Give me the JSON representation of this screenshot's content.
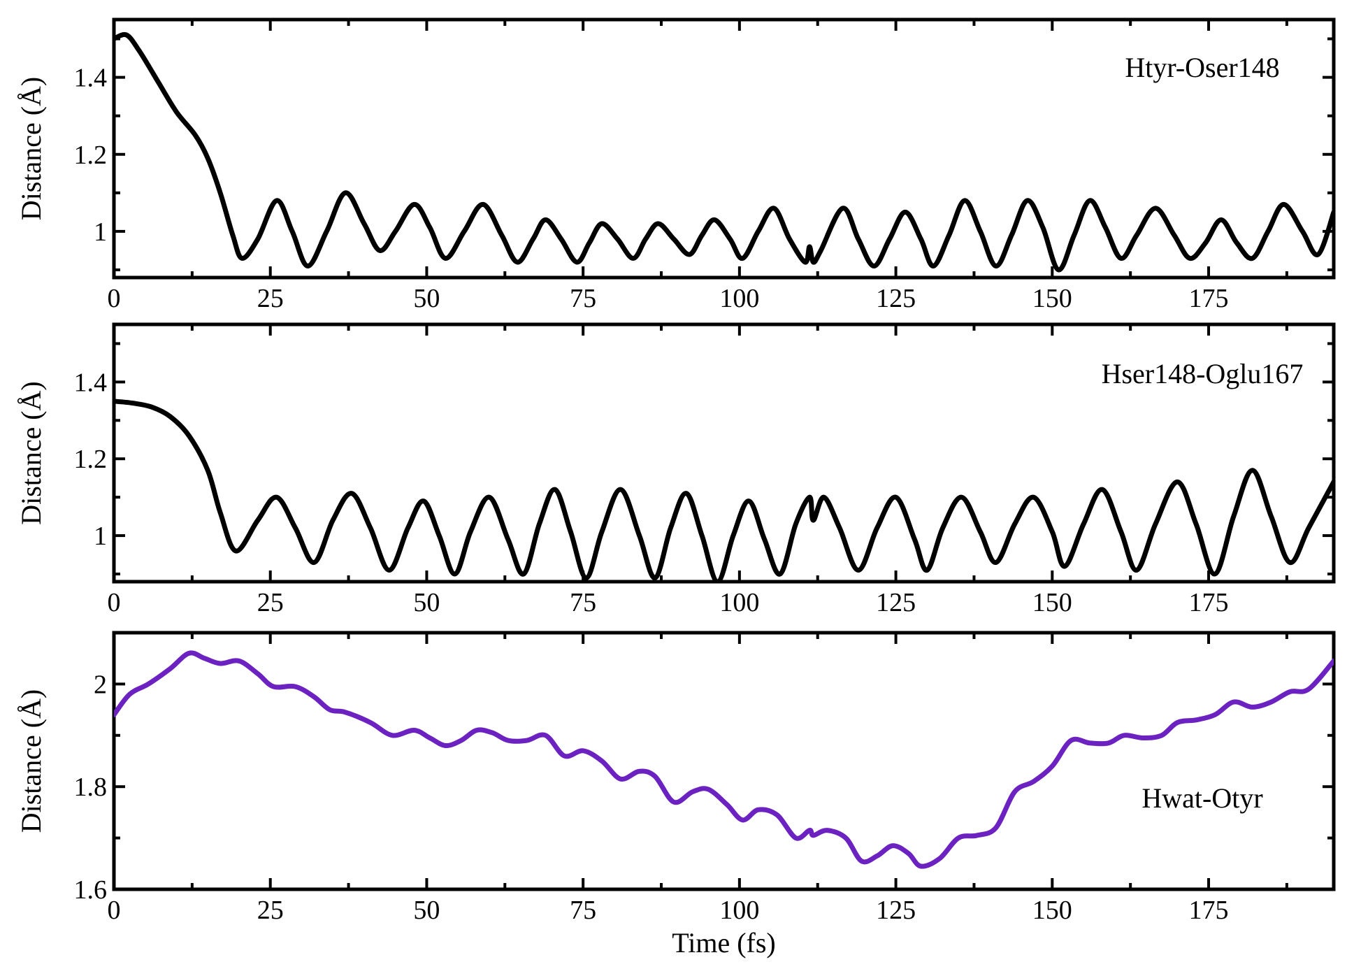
{
  "chart_data": [
    {
      "type": "line",
      "xlabel": "",
      "ylabel": "Distance (Å)",
      "xlim": [
        0,
        195
      ],
      "ylim": [
        0.88,
        1.55
      ],
      "xticks": [
        0,
        25,
        50,
        75,
        100,
        125,
        150,
        175
      ],
      "yticks": [
        1,
        1.2,
        1.4
      ],
      "ytick_labels": [
        "1",
        "1.2",
        "1.4"
      ],
      "annotation": "Htyr-Oser148",
      "color": "#000000",
      "series": [
        {
          "name": "Htyr-Oser148",
          "x": [
            0,
            2,
            4,
            7,
            10,
            13,
            15,
            17,
            19,
            20.5,
            23,
            26,
            28.5,
            31,
            34,
            37,
            40,
            42.5,
            45,
            48,
            50.5,
            53,
            56,
            59,
            62,
            64.5,
            67,
            69,
            71.5,
            74,
            76,
            78,
            80.5,
            83,
            85,
            87,
            89.5,
            92,
            94,
            96,
            98.5,
            100.5,
            103,
            105.5,
            108,
            110.5,
            111.2,
            111.8,
            113,
            116.5,
            119,
            121.5,
            124,
            126.5,
            129,
            131,
            133.5,
            136,
            138.5,
            141,
            143.5,
            146,
            148.5,
            151,
            153.5,
            156,
            158.5,
            161,
            163.5,
            166.5,
            169.5,
            172,
            174.5,
            177,
            179.5,
            182,
            184.5,
            187,
            190,
            192.5,
            195
          ],
          "y": [
            1.5,
            1.51,
            1.47,
            1.39,
            1.31,
            1.25,
            1.19,
            1.1,
            0.99,
            0.93,
            0.98,
            1.08,
            1.0,
            0.91,
            1.0,
            1.1,
            1.02,
            0.95,
            1.0,
            1.07,
            1.01,
            0.93,
            1.0,
            1.07,
            0.99,
            0.92,
            0.98,
            1.03,
            0.98,
            0.92,
            0.97,
            1.02,
            0.98,
            0.93,
            0.98,
            1.02,
            0.98,
            0.94,
            0.99,
            1.03,
            0.98,
            0.93,
            1.0,
            1.06,
            0.98,
            0.92,
            0.96,
            0.92,
            0.95,
            1.06,
            0.98,
            0.91,
            0.98,
            1.05,
            0.98,
            0.91,
            0.99,
            1.08,
            1.0,
            0.91,
            0.99,
            1.08,
            1.01,
            0.9,
            0.99,
            1.08,
            1.01,
            0.93,
            0.99,
            1.06,
            0.99,
            0.93,
            0.97,
            1.03,
            0.97,
            0.93,
            1.0,
            1.07,
            1.0,
            0.94,
            1.05
          ]
        }
      ]
    },
    {
      "type": "line",
      "xlabel": "",
      "ylabel": "Distance (Å)",
      "xlim": [
        0,
        195
      ],
      "ylim": [
        0.88,
        1.55
      ],
      "xticks": [
        0,
        25,
        50,
        75,
        100,
        125,
        150,
        175
      ],
      "yticks": [
        1,
        1.2,
        1.4
      ],
      "ytick_labels": [
        "1",
        "1.2",
        "1.4"
      ],
      "annotation": "Hser148-Oglu167",
      "color": "#000000",
      "series": [
        {
          "name": "Hser148-Oglu167",
          "x": [
            0,
            3,
            6,
            9,
            12,
            15,
            17,
            19.5,
            23,
            26,
            29,
            32,
            35,
            38,
            41,
            44,
            47,
            49.5,
            52,
            54.5,
            57,
            60,
            63,
            65.5,
            68,
            70.5,
            73,
            75.5,
            78,
            81,
            84,
            86.5,
            89,
            91.5,
            94,
            96.5,
            99,
            101.5,
            104,
            106.5,
            109,
            111.2,
            111.8,
            113.5,
            116,
            119,
            122,
            125,
            128,
            130,
            132.5,
            135.5,
            138.5,
            141,
            144,
            147,
            150,
            152,
            155,
            158,
            161,
            163.5,
            166.5,
            170,
            173,
            176,
            179,
            182,
            185,
            188,
            191,
            195
          ],
          "y": [
            1.35,
            1.345,
            1.335,
            1.31,
            1.26,
            1.17,
            1.06,
            0.96,
            1.04,
            1.1,
            1.02,
            0.93,
            1.04,
            1.11,
            1.02,
            0.91,
            1.02,
            1.09,
            1.0,
            0.9,
            1.01,
            1.1,
            0.99,
            0.9,
            1.03,
            1.12,
            1.01,
            0.89,
            1.01,
            1.12,
            1.0,
            0.89,
            1.02,
            1.11,
            1.0,
            0.88,
            1.0,
            1.09,
            0.99,
            0.9,
            1.03,
            1.1,
            1.04,
            1.1,
            1.02,
            0.91,
            1.02,
            1.1,
            0.99,
            0.91,
            1.02,
            1.1,
            1.01,
            0.93,
            1.03,
            1.1,
            1.01,
            0.92,
            1.03,
            1.12,
            1.01,
            0.91,
            1.03,
            1.14,
            1.03,
            0.9,
            1.05,
            1.17,
            1.05,
            0.93,
            1.02,
            1.14
          ]
        }
      ]
    },
    {
      "type": "line",
      "xlabel": "Time (fs)",
      "ylabel": "Distance (Å)",
      "xlim": [
        0,
        195
      ],
      "ylim": [
        1.6,
        2.1
      ],
      "xticks": [
        0,
        25,
        50,
        75,
        100,
        125,
        150,
        175
      ],
      "yticks": [
        1.6,
        1.8,
        2.0
      ],
      "ytick_labels": [
        "1.6",
        "1.8",
        "2"
      ],
      "annotation": "Hwat-Otyr",
      "color": "#6c22c0",
      "series": [
        {
          "name": "Hwat-Otyr",
          "x": [
            0,
            2.5,
            5.5,
            9,
            12,
            14.5,
            17,
            20,
            23,
            25.5,
            29,
            32,
            34.5,
            37,
            41,
            44.5,
            48,
            50.5,
            53,
            55.5,
            58,
            60.5,
            63,
            66,
            69,
            72,
            75,
            78,
            81,
            84,
            86.5,
            89.5,
            92.5,
            95,
            98,
            100.5,
            103,
            106,
            109,
            111.2,
            111.8,
            114,
            117,
            119.5,
            122,
            124.5,
            127,
            129,
            132,
            135,
            138,
            141,
            144,
            147,
            150,
            153,
            156,
            159,
            161.5,
            164.5,
            167.5,
            170,
            173,
            176,
            179,
            182,
            185,
            188,
            191,
            195
          ],
          "y": [
            1.94,
            1.98,
            2.0,
            2.03,
            2.06,
            2.05,
            2.04,
            2.045,
            2.02,
            1.995,
            1.995,
            1.975,
            1.95,
            1.945,
            1.925,
            1.9,
            1.91,
            1.895,
            1.88,
            1.89,
            1.91,
            1.905,
            1.89,
            1.89,
            1.9,
            1.86,
            1.87,
            1.85,
            1.815,
            1.83,
            1.82,
            1.77,
            1.79,
            1.795,
            1.765,
            1.735,
            1.755,
            1.745,
            1.7,
            1.715,
            1.705,
            1.715,
            1.7,
            1.655,
            1.665,
            1.685,
            1.67,
            1.645,
            1.66,
            1.7,
            1.705,
            1.72,
            1.79,
            1.81,
            1.84,
            1.89,
            1.885,
            1.885,
            1.9,
            1.895,
            1.9,
            1.925,
            1.93,
            1.94,
            1.965,
            1.955,
            1.965,
            1.985,
            1.99,
            2.045
          ]
        }
      ]
    }
  ]
}
